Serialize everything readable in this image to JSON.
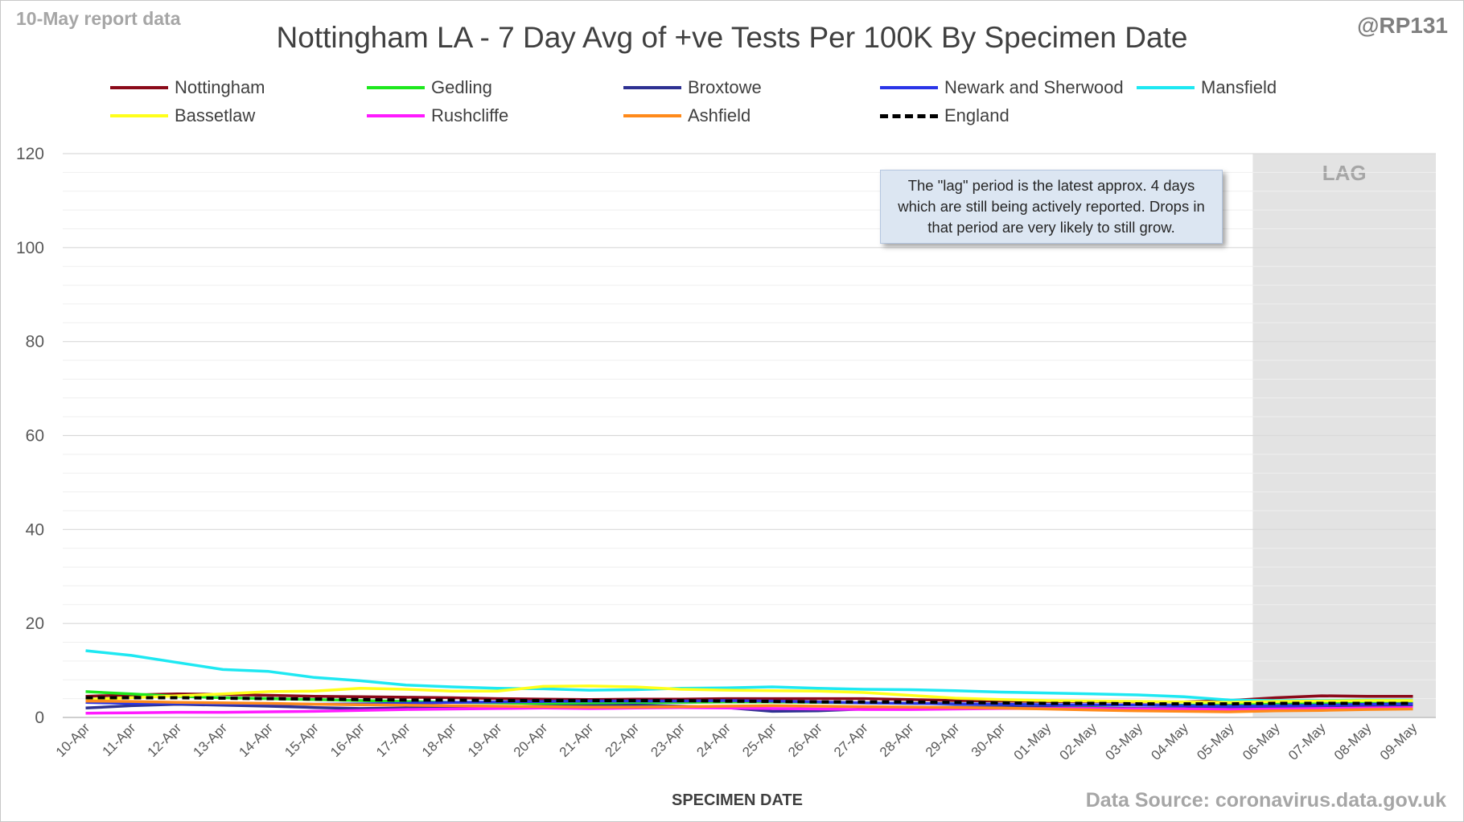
{
  "header": {
    "report_tag": "10-May report data",
    "handle": "@RP131"
  },
  "footer": {
    "source": "Data Source: coronavirus.data.gov.uk"
  },
  "annotation": {
    "note_text": "The \"lag\" period is the latest approx. 4 days which are still being actively reported. Drops in that period are very likely to still grow.",
    "lag_label": "LAG"
  },
  "chart_data": {
    "type": "line",
    "title": "Nottingham LA - 7 Day Avg of +ve Tests Per 100K By Specimen Date",
    "xlabel": "SPECIMEN DATE",
    "ylabel": "",
    "ylim": [
      0,
      120
    ],
    "yticks": [
      0,
      20,
      40,
      60,
      80,
      100,
      120
    ],
    "grid": true,
    "legend_position": "top",
    "lag_start": "06-May",
    "lag_end": "09-May",
    "categories": [
      "10-Apr",
      "11-Apr",
      "12-Apr",
      "13-Apr",
      "14-Apr",
      "15-Apr",
      "16-Apr",
      "17-Apr",
      "18-Apr",
      "19-Apr",
      "20-Apr",
      "21-Apr",
      "22-Apr",
      "23-Apr",
      "24-Apr",
      "25-Apr",
      "26-Apr",
      "27-Apr",
      "28-Apr",
      "29-Apr",
      "30-Apr",
      "01-May",
      "02-May",
      "03-May",
      "04-May",
      "05-May",
      "06-May",
      "07-May",
      "08-May",
      "09-May"
    ],
    "series": [
      {
        "name": "Nottingham",
        "color": "#8b0a1a",
        "dashed": false,
        "values": [
          4.5,
          4.8,
          5.0,
          4.9,
          4.7,
          4.5,
          4.4,
          4.3,
          4.2,
          4.0,
          3.9,
          3.8,
          3.9,
          3.9,
          4.0,
          4.0,
          4.0,
          4.0,
          3.8,
          3.6,
          3.5,
          3.4,
          3.4,
          3.3,
          3.3,
          3.6,
          4.2,
          4.6,
          4.5,
          4.5
        ]
      },
      {
        "name": "Gedling",
        "color": "#1ee81e",
        "dashed": false,
        "values": [
          5.5,
          5.0,
          4.5,
          4.2,
          4.0,
          3.8,
          3.6,
          3.4,
          3.2,
          3.1,
          3.0,
          3.0,
          3.1,
          3.2,
          3.3,
          3.3,
          3.2,
          3.1,
          3.0,
          2.9,
          2.8,
          2.7,
          2.6,
          2.6,
          2.6,
          2.7,
          2.9,
          3.0,
          3.1,
          3.2
        ]
      },
      {
        "name": "Broxtowe",
        "color": "#2e3192",
        "dashed": false,
        "values": [
          2.0,
          2.5,
          2.8,
          2.6,
          2.4,
          2.1,
          1.9,
          2.0,
          2.2,
          2.3,
          2.4,
          2.5,
          2.6,
          2.4,
          2.1,
          1.3,
          1.4,
          1.8,
          2.0,
          2.2,
          2.2,
          2.1,
          2.0,
          1.9,
          1.9,
          2.1,
          2.3,
          2.4,
          2.5,
          2.6
        ]
      },
      {
        "name": "Newark and Sherwood",
        "color": "#2a35e8",
        "dashed": false,
        "values": [
          3.2,
          3.0,
          3.0,
          2.9,
          2.9,
          2.8,
          2.9,
          3.0,
          3.2,
          3.3,
          3.4,
          3.5,
          3.5,
          3.5,
          3.6,
          3.5,
          3.3,
          3.1,
          3.0,
          2.9,
          2.8,
          2.7,
          2.7,
          2.6,
          2.5,
          2.4,
          2.5,
          2.6,
          2.8,
          2.9
        ]
      },
      {
        "name": "Mansfield",
        "color": "#1ee8f2",
        "dashed": false,
        "values": [
          14.2,
          13.2,
          11.7,
          10.2,
          9.8,
          8.5,
          7.8,
          6.9,
          6.5,
          6.2,
          6.1,
          5.8,
          5.9,
          6.2,
          6.3,
          6.5,
          6.2,
          6.0,
          5.9,
          5.7,
          5.4,
          5.2,
          5.0,
          4.8,
          4.4,
          3.7,
          3.6,
          3.6,
          3.7,
          3.7
        ]
      },
      {
        "name": "Bassetlaw",
        "color": "#ffff1a",
        "dashed": false,
        "values": [
          3.8,
          4.2,
          4.6,
          5.0,
          5.5,
          5.6,
          6.2,
          6.0,
          5.6,
          5.6,
          6.6,
          6.7,
          6.5,
          6.0,
          5.8,
          5.7,
          5.6,
          5.3,
          4.7,
          4.1,
          3.8,
          3.6,
          3.5,
          3.4,
          3.3,
          3.2,
          3.4,
          3.5,
          3.6,
          3.6
        ]
      },
      {
        "name": "Rushcliffe",
        "color": "#ff1aff",
        "dashed": false,
        "values": [
          0.9,
          1.0,
          1.1,
          1.1,
          1.2,
          1.3,
          1.5,
          1.7,
          1.8,
          1.9,
          2.0,
          1.9,
          2.0,
          2.1,
          2.0,
          1.9,
          1.8,
          1.7,
          1.7,
          1.8,
          1.9,
          1.9,
          1.9,
          1.8,
          1.8,
          1.7,
          1.8,
          1.9,
          2.0,
          2.1
        ]
      },
      {
        "name": "Ashfield",
        "color": "#ff8a1a",
        "dashed": false,
        "values": [
          3.5,
          3.4,
          3.2,
          3.1,
          3.0,
          2.8,
          2.7,
          2.6,
          2.5,
          2.4,
          2.3,
          2.2,
          2.2,
          2.3,
          2.4,
          2.5,
          2.4,
          2.3,
          2.2,
          2.1,
          2.0,
          1.8,
          1.6,
          1.4,
          1.3,
          1.2,
          1.4,
          1.5,
          1.7,
          1.8
        ]
      },
      {
        "name": "England",
        "color": "#000000",
        "dashed": true,
        "values": [
          4.2,
          4.2,
          4.2,
          4.1,
          4.0,
          3.9,
          3.8,
          3.7,
          3.7,
          3.6,
          3.6,
          3.6,
          3.6,
          3.6,
          3.5,
          3.4,
          3.3,
          3.3,
          3.3,
          3.2,
          3.1,
          3.0,
          3.0,
          2.9,
          2.9,
          2.9,
          3.0,
          3.0,
          3.0,
          3.0
        ]
      }
    ]
  }
}
